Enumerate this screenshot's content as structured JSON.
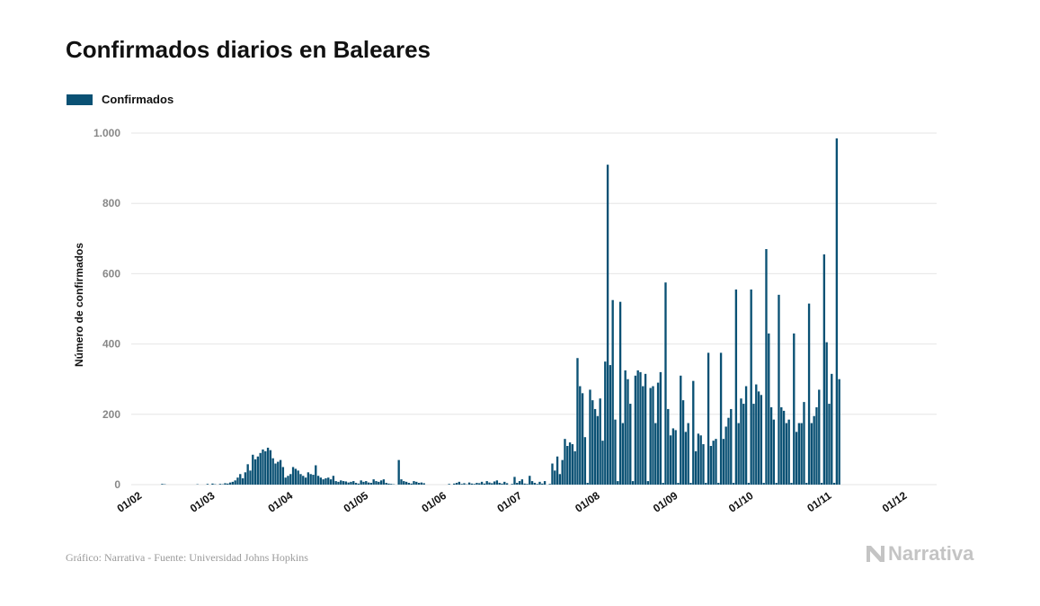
{
  "title": "Confirmados diarios en Baleares",
  "legend": {
    "label": "Confirmados"
  },
  "footer": "Gráfico: Narrativa - Fuente: Universidad Johns Hopkins",
  "brand": {
    "name": "Narrativa",
    "icon": "narrativa-logo-icon"
  },
  "colors": {
    "bar": "#0a5174",
    "grid": "#e6e6e6",
    "tick": "#888888"
  },
  "chart_data": {
    "type": "bar",
    "title": "Confirmados diarios en Baleares",
    "ylabel": "Número de confirmados",
    "xlabel": "",
    "ylim": [
      0,
      1000
    ],
    "yticks": [
      0,
      200,
      400,
      600,
      800,
      1000
    ],
    "ytick_labels": [
      "0",
      "200",
      "400",
      "600",
      "800",
      "1.000"
    ],
    "xtick_labels": [
      "01/02",
      "01/03",
      "01/04",
      "01/05",
      "01/06",
      "01/07",
      "01/08",
      "01/09",
      "01/10",
      "01/11",
      "01/12"
    ],
    "xtick_index": [
      0,
      29,
      60,
      90,
      121,
      151,
      182,
      213,
      243,
      274,
      304
    ],
    "grid": true,
    "legend_position": "top-left",
    "series": [
      {
        "name": "Confirmados",
        "values": [
          0,
          0,
          0,
          0,
          0,
          0,
          0,
          0,
          0,
          0,
          0,
          2,
          1,
          0,
          0,
          0,
          0,
          0,
          0,
          0,
          0,
          0,
          0,
          0,
          0,
          1,
          0,
          0,
          0,
          2,
          0,
          3,
          1,
          0,
          2,
          1,
          4,
          3,
          6,
          8,
          12,
          20,
          30,
          18,
          35,
          58,
          40,
          85,
          72,
          80,
          90,
          100,
          95,
          105,
          98,
          75,
          60,
          65,
          70,
          50,
          20,
          25,
          30,
          50,
          45,
          40,
          30,
          25,
          20,
          35,
          30,
          28,
          55,
          25,
          20,
          15,
          18,
          20,
          15,
          25,
          10,
          8,
          12,
          10,
          9,
          6,
          8,
          10,
          5,
          3,
          12,
          8,
          10,
          6,
          5,
          15,
          10,
          8,
          12,
          15,
          5,
          3,
          2,
          1,
          0,
          70,
          15,
          10,
          8,
          5,
          3,
          10,
          8,
          5,
          6,
          4,
          0,
          0,
          0,
          0,
          0,
          0,
          0,
          0,
          0,
          2,
          0,
          3,
          5,
          8,
          2,
          4,
          1,
          6,
          3,
          2,
          5,
          4,
          8,
          3,
          10,
          6,
          4,
          9,
          12,
          5,
          3,
          8,
          4,
          0,
          2,
          22,
          5,
          10,
          15,
          3,
          2,
          25,
          10,
          5,
          2,
          8,
          3,
          10,
          0,
          2,
          60,
          40,
          80,
          30,
          70,
          130,
          110,
          120,
          115,
          95,
          360,
          280,
          260,
          135,
          5,
          270,
          240,
          215,
          195,
          245,
          125,
          350,
          910,
          340,
          525,
          185,
          10,
          520,
          175,
          325,
          300,
          230,
          10,
          310,
          325,
          320,
          280,
          315,
          10,
          275,
          280,
          175,
          290,
          320,
          5,
          575,
          215,
          140,
          160,
          155,
          5,
          310,
          240,
          150,
          175,
          5,
          295,
          95,
          145,
          140,
          115,
          5,
          375,
          110,
          125,
          130,
          5,
          375,
          130,
          165,
          190,
          215,
          5,
          555,
          175,
          245,
          230,
          280,
          5,
          555,
          230,
          285,
          265,
          255,
          5,
          670,
          430,
          220,
          185,
          5,
          540,
          220,
          210,
          175,
          185,
          5,
          430,
          150,
          175,
          175,
          235,
          5,
          515,
          175,
          195,
          220,
          270,
          5,
          655,
          405,
          230,
          315,
          5,
          985,
          300
        ]
      }
    ]
  }
}
